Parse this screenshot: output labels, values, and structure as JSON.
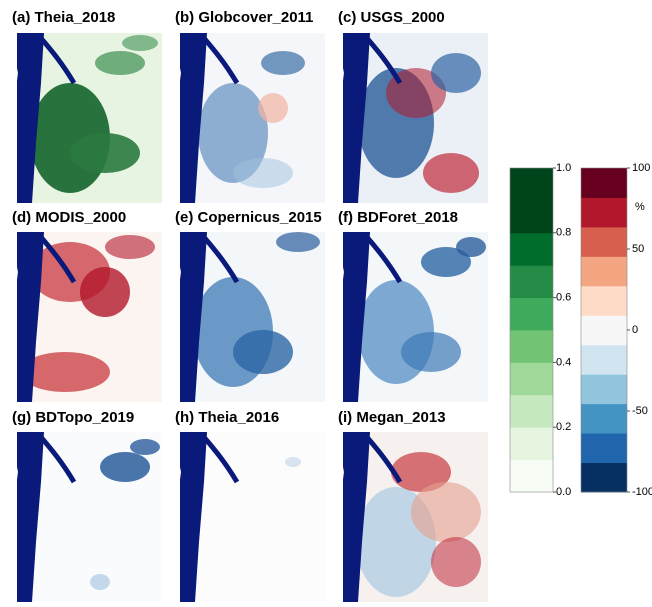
{
  "panels": [
    {
      "title": "(a) Theia_2018"
    },
    {
      "title": "(b) Globcover_2011"
    },
    {
      "title": "(c) USGS_2000"
    },
    {
      "title": "(d) MODIS_2000"
    },
    {
      "title": "(e) Copernicus_2015"
    },
    {
      "title": "(f) BDForet_2018"
    },
    {
      "title": "(g) BDTopo_2019"
    },
    {
      "title": "(h) Theia_2016"
    },
    {
      "title": "(i) Megan_2013"
    }
  ],
  "colorbars": [
    {
      "lim": [
        0,
        1
      ],
      "ticks": [
        {
          "value": 0,
          "label": "0.0"
        },
        0.2,
        0.4,
        0.6,
        0.8,
        {
          "value": 1,
          "label": "1.0"
        }
      ],
      "colors": [
        "#f7fcf5",
        "#e5f5e0",
        "#c7e9c0",
        "#a1d99b",
        "#74c476",
        "#41ab5d",
        "#238b45",
        "#006d2c",
        "#00441b",
        "#00441b"
      ]
    },
    {
      "lim": [
        -100,
        100
      ],
      "unit": "%",
      "ticks": [
        -100,
        -50,
        0,
        50,
        100
      ],
      "colors": [
        "#053061",
        "#2166ac",
        "#4393c3",
        "#92c5de",
        "#d1e5f0",
        "#f7f7f7",
        "#fddbc7",
        "#f4a582",
        "#d6604d",
        "#b2182b",
        "#67001f"
      ]
    }
  ]
}
